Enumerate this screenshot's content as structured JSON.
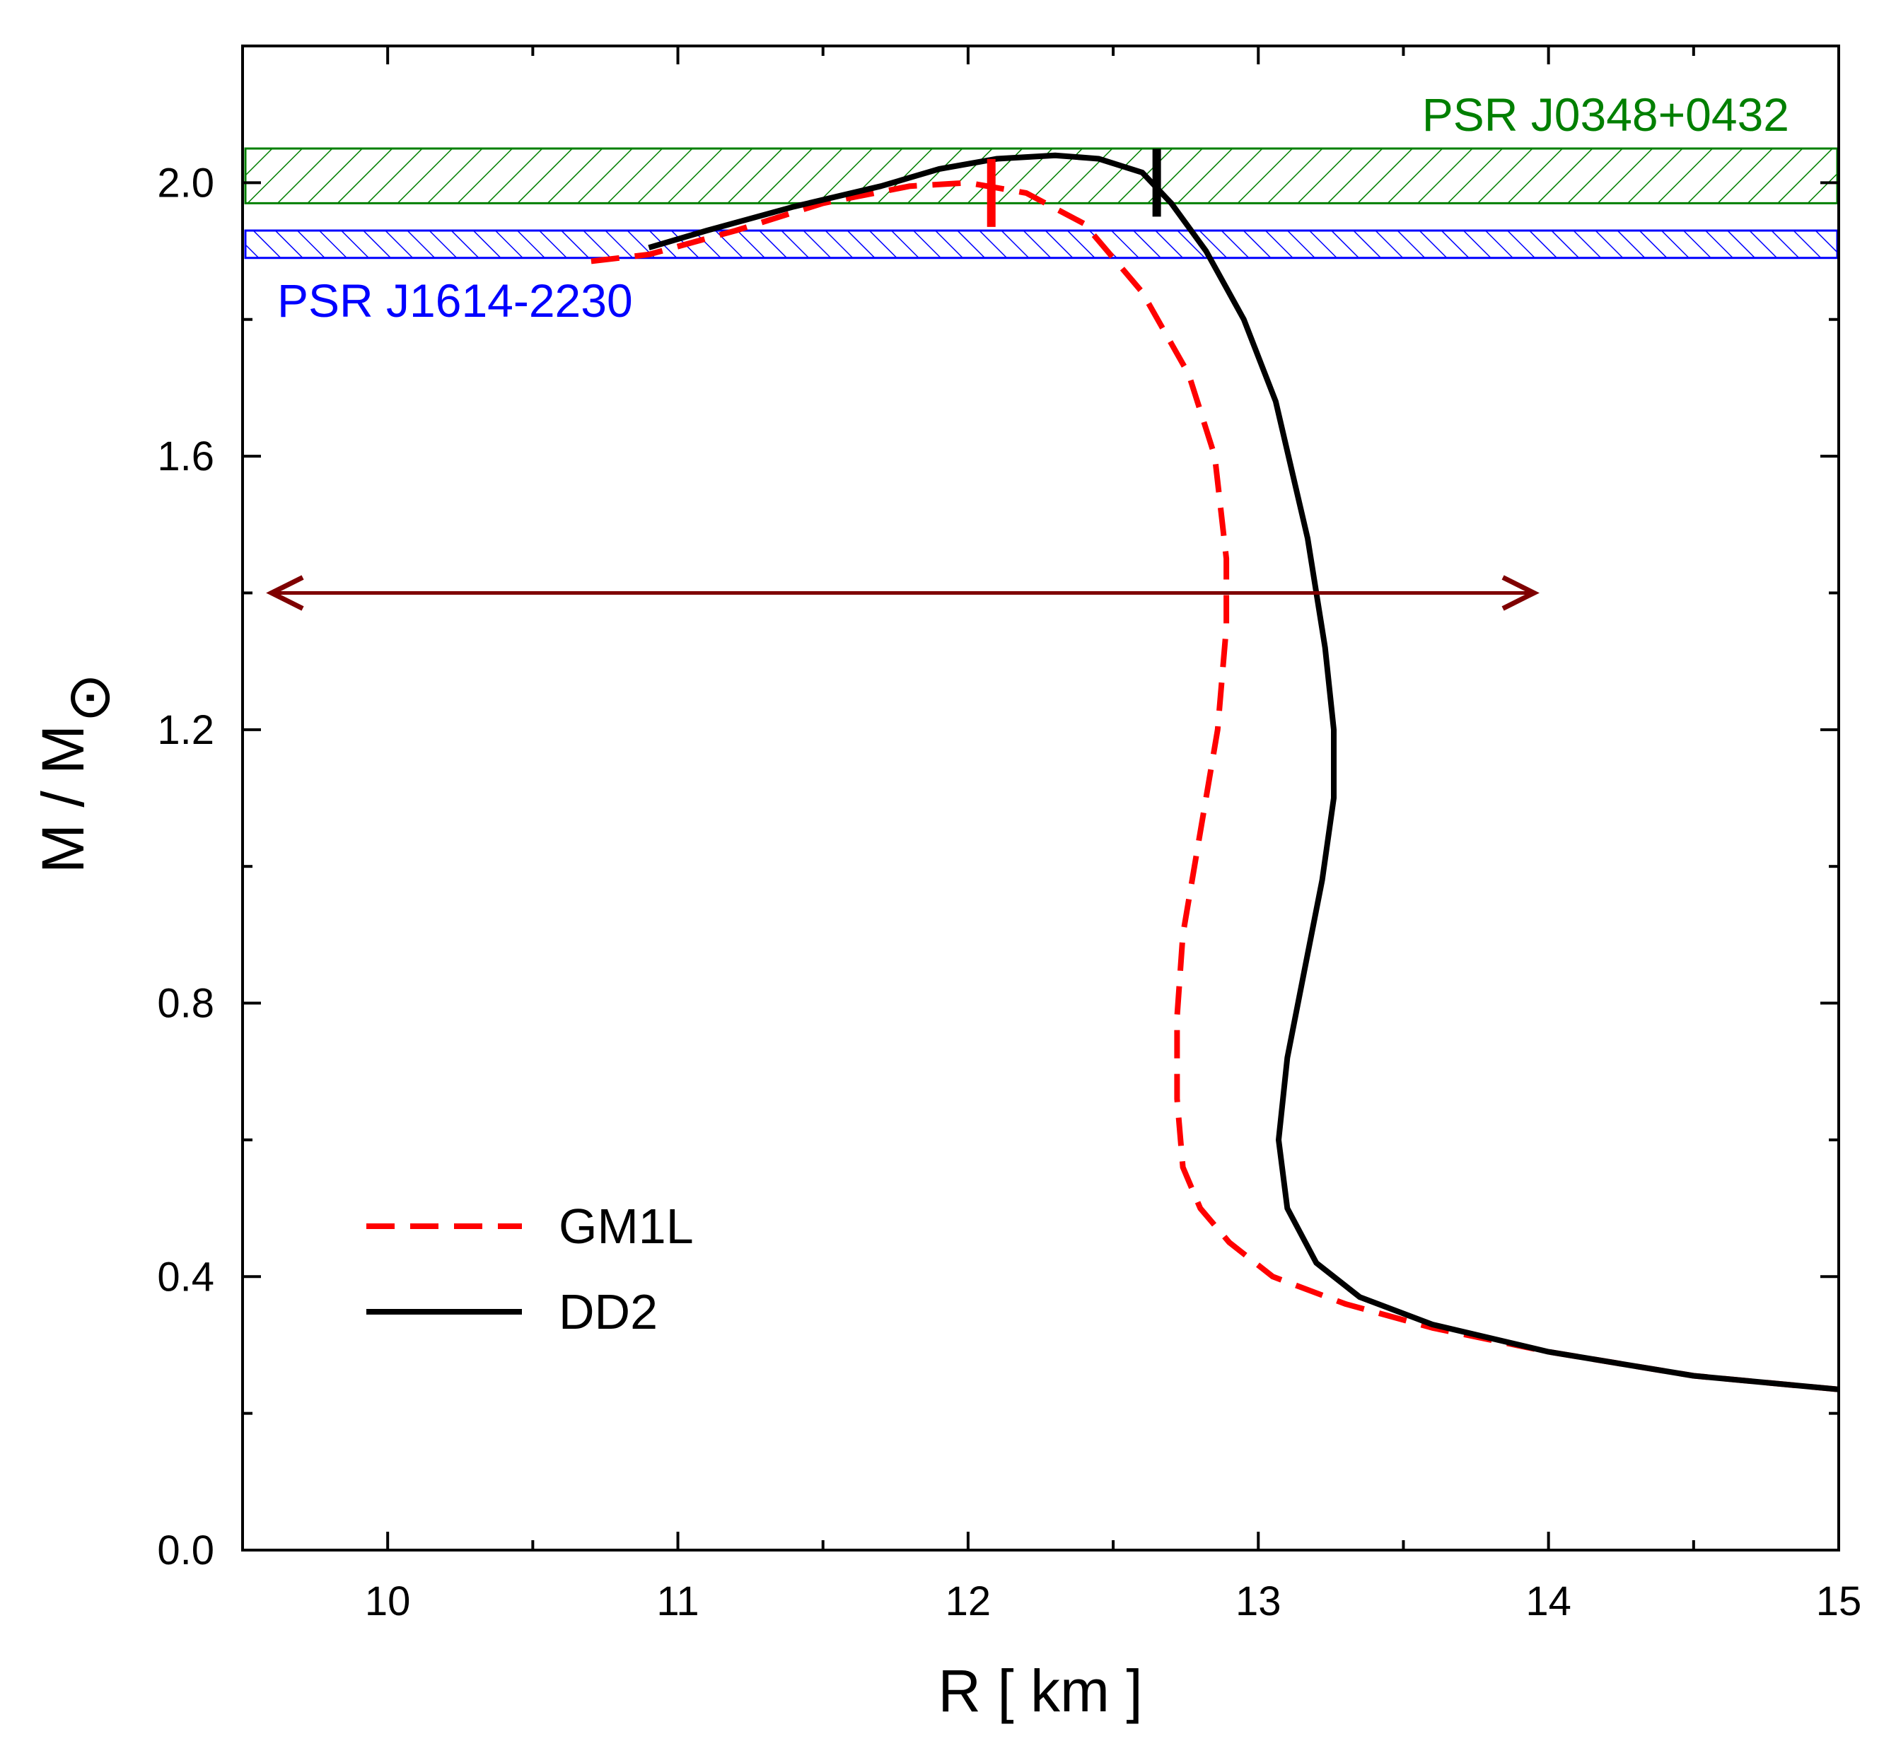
{
  "chart_data": {
    "type": "line",
    "title": "",
    "xlabel": "R  [ km ]",
    "ylabel_main": "M / M",
    "ylabel_symbol": "⊙",
    "xlim": [
      9.5,
      15
    ],
    "ylim": [
      0.0,
      2.2
    ],
    "x_ticks": [
      10,
      11,
      12,
      13,
      14,
      15
    ],
    "x_tick_labels": [
      "10",
      "11",
      "12",
      "13",
      "14",
      "15"
    ],
    "x_minor_ticks": [
      10.5,
      11.5,
      12.5,
      13.5,
      14.5
    ],
    "y_ticks": [
      0.0,
      0.4,
      0.8,
      1.2,
      1.6,
      2.0
    ],
    "y_tick_labels": [
      "0.0",
      "0.4",
      "0.8",
      "1.2",
      "1.6",
      "2.0"
    ],
    "y_minor_ticks": [
      0.2,
      0.6,
      1.0,
      1.4,
      1.8
    ],
    "grid": false,
    "legend_position": "bottom-left",
    "series": [
      {
        "name": "GM1L",
        "style": "dashed",
        "color": "#ff0000",
        "points": [
          [
            15.0,
            0.235
          ],
          [
            14.5,
            0.255
          ],
          [
            14.0,
            0.29
          ],
          [
            13.6,
            0.325
          ],
          [
            13.3,
            0.36
          ],
          [
            13.05,
            0.4
          ],
          [
            12.9,
            0.45
          ],
          [
            12.8,
            0.5
          ],
          [
            12.74,
            0.56
          ],
          [
            12.72,
            0.66
          ],
          [
            12.72,
            0.78
          ],
          [
            12.74,
            0.9
          ],
          [
            12.8,
            1.05
          ],
          [
            12.86,
            1.2
          ],
          [
            12.89,
            1.35
          ],
          [
            12.89,
            1.45
          ],
          [
            12.85,
            1.6
          ],
          [
            12.76,
            1.72
          ],
          [
            12.6,
            1.84
          ],
          [
            12.4,
            1.94
          ],
          [
            12.2,
            1.985
          ],
          [
            12.0,
            2.0
          ],
          [
            11.8,
            1.995
          ],
          [
            11.5,
            1.97
          ],
          [
            11.2,
            1.93
          ],
          [
            10.9,
            1.895
          ],
          [
            10.7,
            1.885
          ]
        ]
      },
      {
        "name": "DD2",
        "style": "solid",
        "color": "#000000",
        "points": [
          [
            15.0,
            0.235
          ],
          [
            14.5,
            0.255
          ],
          [
            14.0,
            0.29
          ],
          [
            13.6,
            0.33
          ],
          [
            13.35,
            0.37
          ],
          [
            13.2,
            0.42
          ],
          [
            13.1,
            0.5
          ],
          [
            13.07,
            0.6
          ],
          [
            13.1,
            0.72
          ],
          [
            13.16,
            0.85
          ],
          [
            13.22,
            0.98
          ],
          [
            13.26,
            1.1
          ],
          [
            13.26,
            1.2
          ],
          [
            13.23,
            1.32
          ],
          [
            13.17,
            1.48
          ],
          [
            13.06,
            1.68
          ],
          [
            12.95,
            1.8
          ],
          [
            12.82,
            1.9
          ],
          [
            12.7,
            1.97
          ],
          [
            12.6,
            2.015
          ],
          [
            12.45,
            2.035
          ],
          [
            12.3,
            2.04
          ],
          [
            12.1,
            2.035
          ],
          [
            11.9,
            2.02
          ],
          [
            11.7,
            1.995
          ],
          [
            11.4,
            1.965
          ],
          [
            11.1,
            1.93
          ],
          [
            10.9,
            1.905
          ]
        ]
      }
    ],
    "markers": [
      {
        "series": "GM1L",
        "x": 12.08,
        "y": 1.985,
        "color": "#ff0000"
      },
      {
        "series": "DD2",
        "x": 12.65,
        "y": 2.0,
        "color": "#000000"
      }
    ],
    "bands": [
      {
        "label": "PSR J0348+0432",
        "ymin": 1.97,
        "ymax": 2.05,
        "color": "#007f00"
      },
      {
        "label": "PSR J1614-2230",
        "ymin": 1.89,
        "ymax": 1.93,
        "color": "#0000ff"
      }
    ],
    "arrow": {
      "x_from": 9.6,
      "x_to": 13.95,
      "y": 1.4,
      "color": "#7f0000"
    }
  }
}
